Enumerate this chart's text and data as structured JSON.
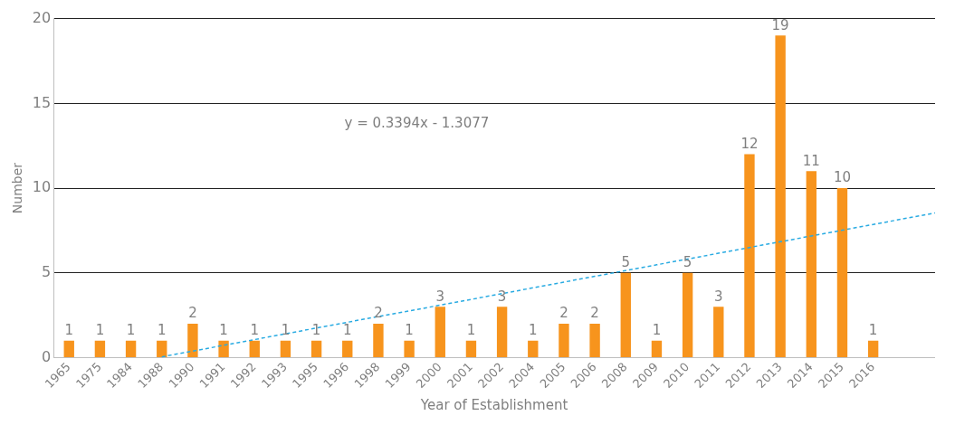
{
  "chart_data": {
    "type": "bar",
    "xlabel": "Year of Establishment",
    "ylabel": "Number",
    "categories": [
      "1965",
      "1975",
      "1984",
      "1988",
      "1990",
      "1991",
      "1992",
      "1993",
      "1995",
      "1996",
      "1998",
      "1999",
      "2000",
      "2001",
      "2002",
      "2004",
      "2005",
      "2006",
      "2008",
      "2009",
      "2010",
      "2011",
      "2012",
      "2013",
      "2014",
      "2015",
      "2016",
      null,
      null
    ],
    "series": [
      {
        "color": "#f7941d",
        "values": [
          1,
          1,
          1,
          1,
          2,
          1,
          1,
          1,
          1,
          1,
          2,
          1,
          3,
          1,
          3,
          1,
          2,
          2,
          5,
          1,
          5,
          3,
          12,
          19,
          11,
          10,
          1,
          null,
          null
        ],
        "value_labels": [
          "1",
          "1",
          "1",
          "1",
          "2",
          "1",
          "1",
          "1",
          "1",
          "1",
          "2",
          "1",
          "3",
          "1",
          "3",
          "1",
          "2",
          "2",
          "5",
          "1",
          "5",
          "3",
          "12",
          "19",
          "11",
          "10",
          "1",
          null,
          null
        ]
      },
      {
        "type": "line",
        "color": "#29abe2",
        "line_style": "dashed",
        "marker": "none",
        "values": [
          null,
          null,
          null,
          0.05,
          0.39,
          0.73,
          1.07,
          1.41,
          1.75,
          2.09,
          2.43,
          2.76,
          3.1,
          3.44,
          3.78,
          4.12,
          4.46,
          4.8,
          5.14,
          5.48,
          5.82,
          6.16,
          6.5,
          6.84,
          7.18,
          7.52,
          7.86,
          8.2,
          8.54
        ]
      }
    ],
    "ylim": [
      0,
      20
    ],
    "yticks": [
      0,
      5,
      10,
      15,
      20
    ],
    "grid": "y",
    "legend": false,
    "annotations": [
      "y = 0.3394x - 1.3077"
    ]
  }
}
